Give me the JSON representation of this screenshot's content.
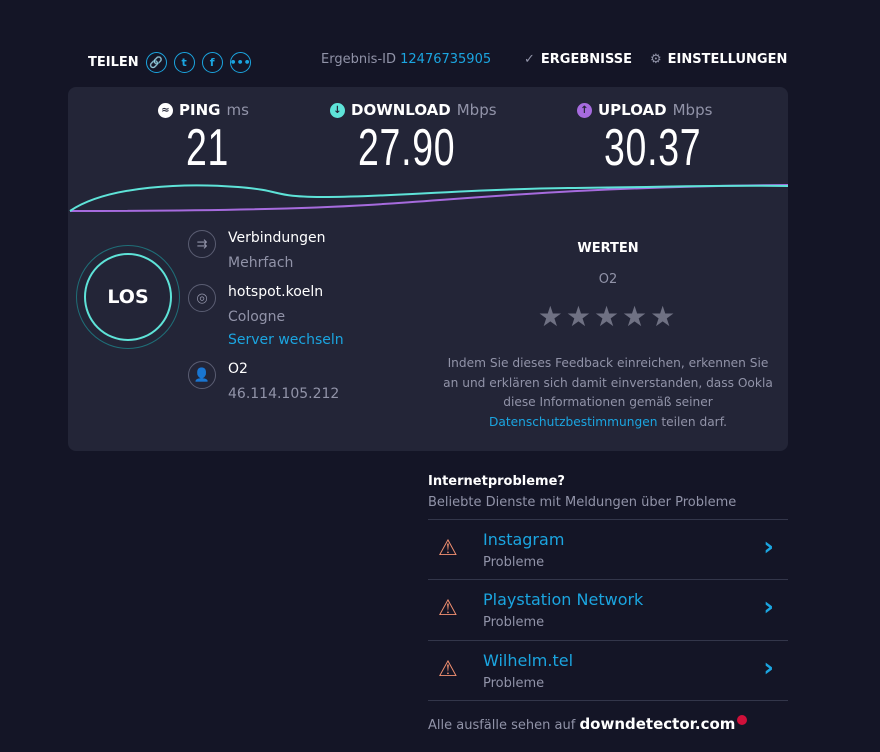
{
  "header": {
    "share_label": "TEILEN",
    "result_id_label": "Ergebnis-ID",
    "result_id": "12476735905",
    "results_label": "ERGEBNISSE",
    "settings_label": "EINSTELLUNGEN"
  },
  "metrics": {
    "ping": {
      "label": "PING",
      "unit": "ms",
      "value": "21"
    },
    "download": {
      "label": "DOWNLOAD",
      "unit": "Mbps",
      "value": "27.90"
    },
    "upload": {
      "label": "UPLOAD",
      "unit": "Mbps",
      "value": "30.37"
    }
  },
  "colors": {
    "download": "#5ee3d8",
    "upload": "#a66bde",
    "accent": "#1ba5e0"
  },
  "go_label": "LOS",
  "connection": {
    "label": "Verbindungen",
    "value": "Mehrfach"
  },
  "server": {
    "name": "hotspot.koeln",
    "location": "Cologne",
    "change_label": "Server wechseln"
  },
  "provider": {
    "name": "O2",
    "ip": "46.114.105.212"
  },
  "rating": {
    "title": "WERTEN",
    "provider": "O2",
    "stars": 0,
    "text": "Indem Sie dieses Feedback einreichen, erkennen Sie an und erklären sich damit einverstanden, dass Ookla diese Informationen gemäß seiner",
    "link": "Datenschutzbestimmungen",
    "text_end": " teilen darf."
  },
  "problems": {
    "title": "Internetprobleme?",
    "subtitle": "Beliebte Dienste mit Meldungen über Probleme",
    "items": [
      {
        "name": "Instagram",
        "status": "Probleme"
      },
      {
        "name": "Playstation Network",
        "status": "Probleme"
      },
      {
        "name": "Wilhelm.tel",
        "status": "Probleme"
      }
    ],
    "footer": "Alle ausfälle sehen auf",
    "footer_link": "downdetector.com"
  }
}
